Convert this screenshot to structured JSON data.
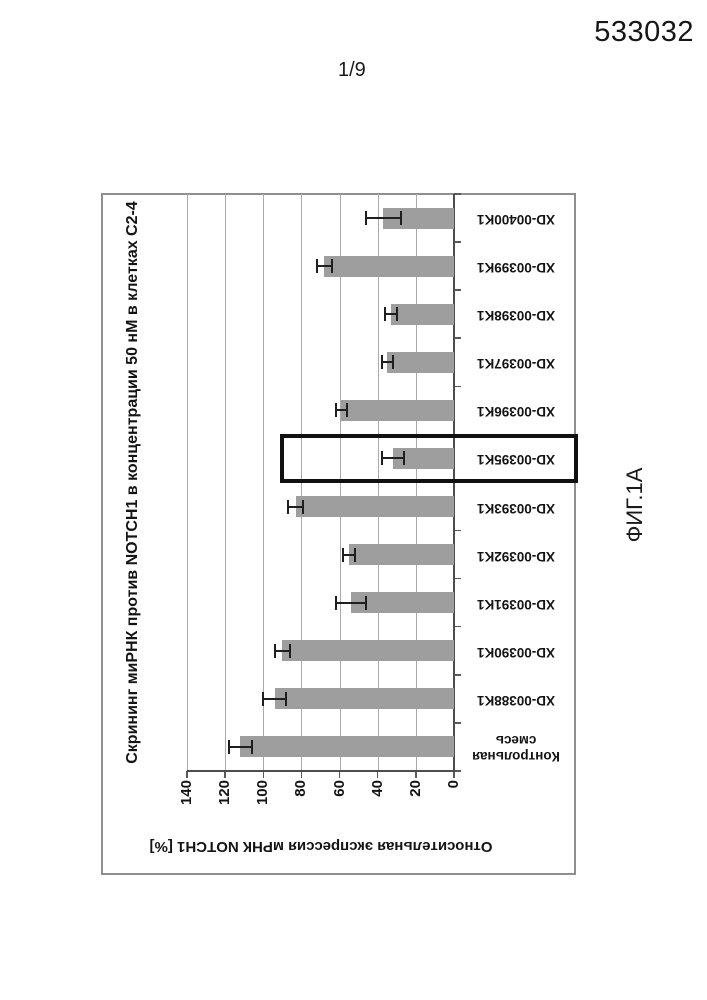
{
  "page": {
    "patent_number": "533032",
    "page_label": "1/9",
    "figure_label": "ФИГ.1А"
  },
  "chart_data": {
    "type": "bar",
    "title": "Скрининг миРНК против NOTCH1 в концентрации 50 нМ в клетках C2-4",
    "ylabel": "Относительная экспрессия мРНК NOTCH1 [%]",
    "ylim": [
      0,
      140
    ],
    "yticks": [
      0,
      20,
      40,
      60,
      80,
      100,
      120,
      140
    ],
    "grid": true,
    "orientation": "whole chart rotated 90° counter-clockwise on the page",
    "bar_color": "#9e9e9e",
    "error_color": "#1f1f1f",
    "highlighted_category": "XD-00395K1",
    "categories": [
      "Контрольная\nсмесь",
      "XD-00388K1",
      "XD-00390K1",
      "XD-00391K1",
      "XD-00392K1",
      "XD-00393K1",
      "XD-00395K1",
      "XD-00396K1",
      "XD-00397K1",
      "XD-00398K1",
      "XD-00399K1",
      "XD-00400K1"
    ],
    "values": [
      112,
      94,
      90,
      54,
      55,
      83,
      32,
      59,
      35,
      33,
      68,
      37
    ],
    "errors": [
      6,
      6,
      4,
      8,
      3,
      4,
      6,
      3,
      3,
      3,
      4,
      9
    ]
  }
}
